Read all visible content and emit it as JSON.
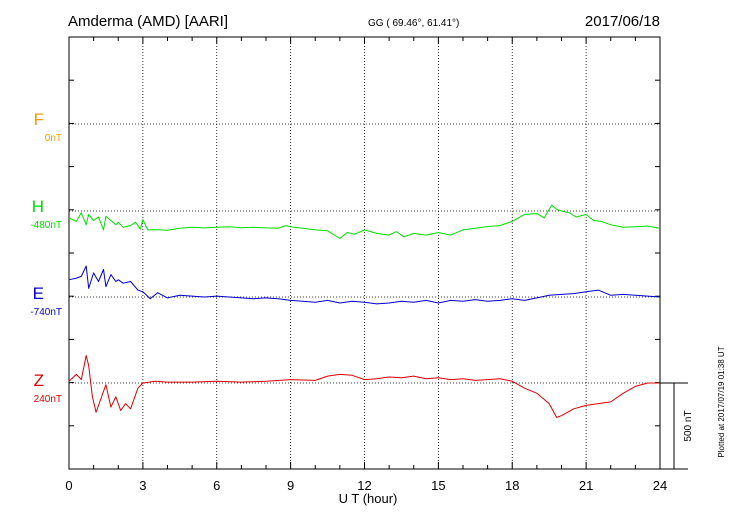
{
  "header": {
    "title": "Amderma (AMD)  [AARI]",
    "coords": "GG ( 69.46°,  61.41°)",
    "date": "2017/06/18"
  },
  "plotted_note": "Plotted at 2017/07/19 01:38 UT",
  "scale_label": "500 nT",
  "colors": {
    "F": "#f0a000",
    "H": "#00dd00",
    "E": "#0000cc",
    "Z": "#dd0000"
  },
  "chart_data": {
    "type": "line",
    "title": "Amderma (AMD)  [AARI]",
    "xlabel": "U T (hour)",
    "ylabel": "",
    "xlim": [
      0,
      24
    ],
    "xticks": [
      "0",
      "3",
      "6",
      "9",
      "12",
      "15",
      "18",
      "21",
      "24"
    ],
    "grid": true,
    "scale_nT": 500,
    "series": [
      {
        "name": "F",
        "baseline_label": "0nT",
        "color": "#f0a000",
        "x": [],
        "y": []
      },
      {
        "name": "H",
        "baseline_label": "-480nT",
        "color": "#00dd00",
        "x": [
          0,
          0.3,
          0.5,
          0.7,
          0.8,
          1.0,
          1.2,
          1.4,
          1.5,
          1.7,
          1.9,
          2.0,
          2.2,
          2.5,
          2.7,
          2.9,
          3.0,
          3.2,
          3.5,
          4,
          4.5,
          5,
          5.5,
          6,
          6.5,
          7,
          7.5,
          8,
          8.5,
          8.8,
          9,
          9.5,
          10,
          10.5,
          11,
          11.3,
          11.6,
          12,
          12.5,
          13,
          13.3,
          13.6,
          14,
          14.5,
          15,
          15.5,
          16,
          16.5,
          17,
          17.5,
          18,
          18.5,
          19,
          19.3,
          19.6,
          19.8,
          20,
          20.3,
          20.6,
          21,
          21.3,
          21.6,
          22,
          22.5,
          23,
          23.5,
          24
        ],
        "y": [
          -40,
          -60,
          -10,
          -80,
          -20,
          -55,
          -35,
          -110,
          -30,
          -55,
          -80,
          -65,
          -95,
          -85,
          -65,
          -105,
          -50,
          -110,
          -108,
          -112,
          -100,
          -95,
          -98,
          -95,
          -92,
          -97,
          -95,
          -98,
          -100,
          -85,
          -92,
          -100,
          -110,
          -115,
          -160,
          -125,
          -135,
          -110,
          -130,
          -140,
          -120,
          -150,
          -130,
          -140,
          -125,
          -140,
          -110,
          -100,
          -90,
          -85,
          -60,
          -20,
          -15,
          -40,
          35,
          10,
          0,
          -10,
          -35,
          -20,
          -55,
          -60,
          -80,
          -95,
          -92,
          -88,
          -100
        ]
      },
      {
        "name": "E",
        "baseline_label": "-740nT",
        "color": "#0000cc",
        "x": [
          0,
          0.3,
          0.5,
          0.7,
          0.8,
          1.0,
          1.2,
          1.4,
          1.5,
          1.7,
          1.9,
          2.0,
          2.2,
          2.5,
          2.8,
          3.0,
          3.3,
          3.6,
          4,
          4.5,
          5,
          5.5,
          6,
          6.5,
          7,
          7.5,
          8,
          8.5,
          9,
          9.5,
          10,
          10.5,
          11,
          11.5,
          12,
          12.5,
          13,
          13.5,
          14,
          14.5,
          15,
          15.5,
          16,
          16.5,
          17,
          17.5,
          18,
          18.5,
          19,
          19.5,
          20,
          20.5,
          21,
          21.5,
          22,
          22.5,
          23,
          23.5,
          24
        ],
        "y": [
          100,
          110,
          120,
          180,
          50,
          140,
          90,
          160,
          60,
          130,
          90,
          100,
          80,
          90,
          40,
          30,
          -10,
          25,
          -5,
          10,
          5,
          0,
          5,
          0,
          -5,
          -10,
          -5,
          -10,
          -20,
          -25,
          -30,
          -20,
          -35,
          -25,
          -30,
          -40,
          -35,
          -25,
          -30,
          -20,
          -35,
          -20,
          -25,
          -15,
          -25,
          -20,
          -10,
          -20,
          -5,
          10,
          15,
          20,
          30,
          40,
          10,
          15,
          10,
          5,
          0
        ]
      },
      {
        "name": "Z",
        "baseline_label": "240nT",
        "color": "#dd0000",
        "x": [
          0,
          0.3,
          0.5,
          0.7,
          0.8,
          0.95,
          1.1,
          1.3,
          1.5,
          1.7,
          1.9,
          2.1,
          2.3,
          2.5,
          2.8,
          3,
          3.5,
          4,
          5,
          6,
          7,
          8,
          9,
          10,
          10.5,
          11,
          11.5,
          12,
          12.5,
          13,
          13.5,
          14,
          14.5,
          15,
          15.5,
          16,
          16.5,
          17,
          17.5,
          18,
          18.5,
          19,
          19.5,
          19.8,
          20,
          20.5,
          21,
          21.5,
          22,
          22.5,
          23,
          23.5,
          24
        ],
        "y": [
          10,
          50,
          20,
          160,
          100,
          -80,
          -170,
          -90,
          -10,
          -140,
          -80,
          -160,
          -120,
          -150,
          -30,
          0,
          10,
          5,
          5,
          10,
          5,
          10,
          20,
          15,
          40,
          50,
          45,
          20,
          25,
          35,
          30,
          40,
          25,
          30,
          20,
          25,
          15,
          20,
          25,
          10,
          -30,
          -60,
          -120,
          -200,
          -190,
          -150,
          -130,
          -120,
          -110,
          -60,
          -20,
          0,
          0
        ]
      }
    ]
  }
}
